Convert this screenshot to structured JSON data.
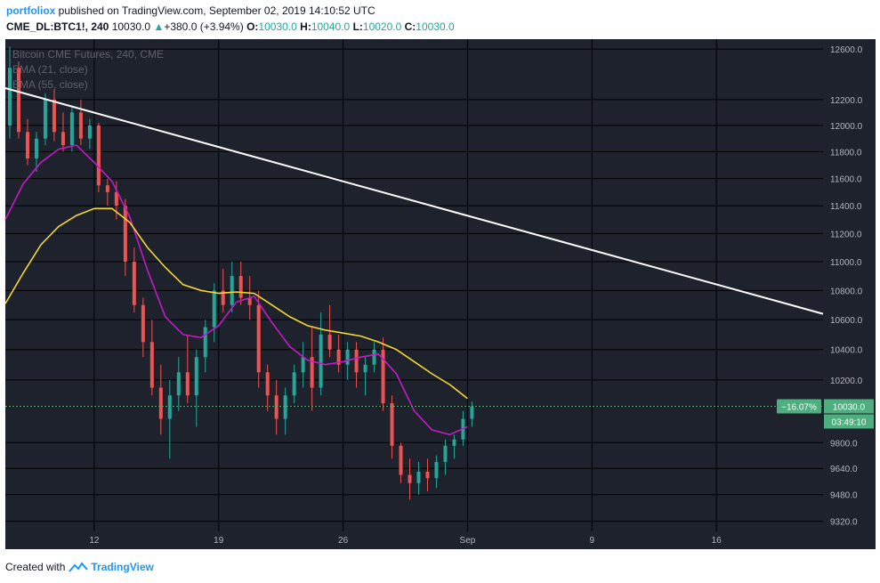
{
  "header": {
    "author": "portfoliox",
    "published_text": "published on TradingView.com, September 02, 2019 14:10:52 UTC",
    "symbol": "CME_DL:BTC1!, 240",
    "last": "10030.0",
    "change_arrow": "▲",
    "change": "+380.0 (+3.94%)",
    "o_label": "O:",
    "o_value": "10030.0",
    "h_label": "H:",
    "h_value": "10040.0",
    "l_label": "L:",
    "l_value": "10020.0",
    "c_label": "C:",
    "c_value": "10030.0"
  },
  "legend": {
    "title": "Bitcoin CME Futures, 240, CME",
    "ema21": "EMA (21, close)",
    "ema55": "EMA (55, close)"
  },
  "price_badge": {
    "percent": "−16.07%",
    "price": "10030.0",
    "countdown": "03:49:10"
  },
  "footer": {
    "created_with": "Created with",
    "brand": "TradingView"
  },
  "colors": {
    "background": "#1e222d",
    "grid": "#000000",
    "up": "#26a69a",
    "down": "#ef5350",
    "ema21": "#c21bc4",
    "ema55": "#f5d831",
    "trendline": "#ffffff",
    "axis_text": "#b2b5be",
    "badge": "#4caf7d"
  },
  "chart_data": {
    "type": "candlestick",
    "title": "Bitcoin CME Futures, 240, CME",
    "xlabel": "",
    "ylabel": "",
    "ylim": [
      9260,
      12680
    ],
    "y_scale": "log",
    "y_ticks": [
      9320.0,
      9480.0,
      9640.0,
      9800.0,
      10030.0,
      10200.0,
      10400.0,
      10600.0,
      10800.0,
      11000.0,
      11200.0,
      11400.0,
      11600.0,
      11800.0,
      12000.0,
      12200.0,
      12600.0
    ],
    "y_tick_labels": [
      "9320.0",
      "9480.0",
      "9640.0",
      "9800.0",
      "10030.0",
      "10200.0",
      "10400.0",
      "10600.0",
      "10800.0",
      "11000.0",
      "11200.0",
      "11400.0",
      "11600.0",
      "11800.0",
      "12000.0",
      "12200.0",
      "12600.0"
    ],
    "x_ticks": [
      {
        "label": "12",
        "date": "2019-08-12"
      },
      {
        "label": "19",
        "date": "2019-08-19"
      },
      {
        "label": "26",
        "date": "2019-08-26"
      },
      {
        "label": "Sep",
        "date": "2019-09-02"
      },
      {
        "label": "9",
        "date": "2019-09-09"
      },
      {
        "label": "16",
        "date": "2019-09-16"
      }
    ],
    "x_range": [
      "2019-08-07",
      "2019-09-22"
    ],
    "grid": true,
    "legend_position": "top-left",
    "series": [
      {
        "name": "EMA (21, close)",
        "values": [
          [
            "2019-08-07",
            11300
          ],
          [
            "2019-08-08",
            11560
          ],
          [
            "2019-08-09",
            11720
          ],
          [
            "2019-08-10",
            11820
          ],
          [
            "2019-08-11",
            11850
          ],
          [
            "2019-08-12",
            11720
          ],
          [
            "2019-08-13",
            11580
          ],
          [
            "2019-08-14",
            11320
          ],
          [
            "2019-08-15",
            10940
          ],
          [
            "2019-08-16",
            10620
          ],
          [
            "2019-08-17",
            10500
          ],
          [
            "2019-08-18",
            10480
          ],
          [
            "2019-08-19",
            10560
          ],
          [
            "2019-08-20",
            10720
          ],
          [
            "2019-08-21",
            10760
          ],
          [
            "2019-08-22",
            10580
          ],
          [
            "2019-08-23",
            10420
          ],
          [
            "2019-08-24",
            10330
          ],
          [
            "2019-08-25",
            10300
          ],
          [
            "2019-08-26",
            10320
          ],
          [
            "2019-08-27",
            10350
          ],
          [
            "2019-08-28",
            10370
          ],
          [
            "2019-08-29",
            10240
          ],
          [
            "2019-08-30",
            10000
          ],
          [
            "2019-08-31",
            9880
          ],
          [
            "2019-09-01",
            9850
          ],
          [
            "2019-09-02",
            9900
          ]
        ]
      },
      {
        "name": "EMA (55, close)",
        "values": [
          [
            "2019-08-07",
            10710
          ],
          [
            "2019-08-08",
            10920
          ],
          [
            "2019-08-09",
            11120
          ],
          [
            "2019-08-10",
            11250
          ],
          [
            "2019-08-11",
            11330
          ],
          [
            "2019-08-12",
            11380
          ],
          [
            "2019-08-13",
            11380
          ],
          [
            "2019-08-14",
            11280
          ],
          [
            "2019-08-15",
            11100
          ],
          [
            "2019-08-16",
            10960
          ],
          [
            "2019-08-17",
            10840
          ],
          [
            "2019-08-18",
            10800
          ],
          [
            "2019-08-19",
            10780
          ],
          [
            "2019-08-20",
            10790
          ],
          [
            "2019-08-21",
            10780
          ],
          [
            "2019-08-22",
            10700
          ],
          [
            "2019-08-23",
            10620
          ],
          [
            "2019-08-24",
            10560
          ],
          [
            "2019-08-25",
            10530
          ],
          [
            "2019-08-26",
            10510
          ],
          [
            "2019-08-27",
            10490
          ],
          [
            "2019-08-28",
            10450
          ],
          [
            "2019-08-29",
            10400
          ],
          [
            "2019-08-30",
            10320
          ],
          [
            "2019-08-31",
            10240
          ],
          [
            "2019-09-01",
            10170
          ],
          [
            "2019-09-02",
            10080
          ]
        ]
      },
      {
        "name": "Trend line",
        "values": [
          [
            "2019-08-07",
            12290
          ],
          [
            "2019-09-22",
            10640
          ]
        ]
      }
    ],
    "candles": [
      [
        "2019-08-07",
        12000,
        12620,
        11900,
        12450
      ],
      [
        "2019-08-07",
        12450,
        12500,
        11900,
        11950
      ],
      [
        "2019-08-08",
        11950,
        12050,
        11700,
        11750
      ],
      [
        "2019-08-08",
        11750,
        11950,
        11650,
        11900
      ],
      [
        "2019-08-09",
        11900,
        12250,
        11850,
        12200
      ],
      [
        "2019-08-09",
        12200,
        12280,
        11880,
        11950
      ],
      [
        "2019-08-10",
        11950,
        12100,
        11800,
        11850
      ],
      [
        "2019-08-10",
        11850,
        12150,
        11800,
        12100
      ],
      [
        "2019-08-11",
        12100,
        12200,
        11850,
        11900
      ],
      [
        "2019-08-11",
        11900,
        12050,
        11820,
        12000
      ],
      [
        "2019-08-12",
        12000,
        12020,
        11500,
        11550
      ],
      [
        "2019-08-12",
        11550,
        11600,
        11400,
        11500
      ],
      [
        "2019-08-13",
        11500,
        11580,
        11300,
        11400
      ],
      [
        "2019-08-13",
        11400,
        11450,
        10900,
        11000
      ],
      [
        "2019-08-14",
        11000,
        11100,
        10650,
        10700
      ],
      [
        "2019-08-14",
        10700,
        10750,
        10350,
        10450
      ],
      [
        "2019-08-15",
        10450,
        10600,
        10100,
        10150
      ],
      [
        "2019-08-15",
        10150,
        10300,
        9850,
        9950
      ],
      [
        "2019-08-16",
        9950,
        10200,
        9700,
        10100
      ],
      [
        "2019-08-16",
        10100,
        10350,
        10000,
        10250
      ],
      [
        "2019-08-17",
        10250,
        10500,
        10050,
        10100
      ],
      [
        "2019-08-17",
        10100,
        10400,
        9900,
        10350
      ],
      [
        "2019-08-18",
        10350,
        10600,
        10250,
        10550
      ],
      [
        "2019-08-18",
        10550,
        10850,
        10450,
        10800
      ],
      [
        "2019-08-19",
        10800,
        10950,
        10650,
        10700
      ],
      [
        "2019-08-19",
        10700,
        11000,
        10650,
        10900
      ],
      [
        "2019-08-20",
        10900,
        11000,
        10700,
        10750
      ],
      [
        "2019-08-20",
        10750,
        10900,
        10600,
        10700
      ],
      [
        "2019-08-21",
        10700,
        10800,
        10150,
        10250
      ],
      [
        "2019-08-21",
        10250,
        10300,
        10000,
        10100
      ],
      [
        "2019-08-22",
        10100,
        10200,
        9850,
        9950
      ],
      [
        "2019-08-22",
        9950,
        10150,
        9850,
        10100
      ],
      [
        "2019-08-23",
        10100,
        10300,
        10050,
        10250
      ],
      [
        "2019-08-23",
        10250,
        10450,
        10150,
        10350
      ],
      [
        "2019-08-24",
        10350,
        10550,
        10000,
        10150
      ],
      [
        "2019-08-24",
        10150,
        10650,
        10100,
        10500
      ],
      [
        "2019-08-25",
        10500,
        10700,
        10350,
        10400
      ],
      [
        "2019-08-25",
        10400,
        10500,
        10250,
        10300
      ],
      [
        "2019-08-26",
        10300,
        10450,
        10200,
        10400
      ],
      [
        "2019-08-26",
        10400,
        10450,
        10150,
        10250
      ],
      [
        "2019-08-27",
        10250,
        10350,
        10100,
        10300
      ],
      [
        "2019-08-27",
        10300,
        10450,
        10250,
        10400
      ],
      [
        "2019-08-28",
        10400,
        10480,
        10000,
        10050
      ],
      [
        "2019-08-28",
        10050,
        10100,
        9700,
        9780
      ],
      [
        "2019-08-29",
        9780,
        9800,
        9550,
        9600
      ],
      [
        "2019-08-29",
        9600,
        9700,
        9450,
        9550
      ],
      [
        "2019-08-30",
        9550,
        9680,
        9480,
        9620
      ],
      [
        "2019-08-30",
        9620,
        9700,
        9500,
        9580
      ],
      [
        "2019-08-31",
        9580,
        9720,
        9520,
        9680
      ],
      [
        "2019-08-31",
        9680,
        9820,
        9600,
        9780
      ],
      [
        "2019-09-01",
        9780,
        9850,
        9700,
        9820
      ],
      [
        "2019-09-01",
        9820,
        10000,
        9780,
        9950
      ],
      [
        "2019-09-02",
        9950,
        10060,
        9900,
        10030
      ]
    ]
  }
}
